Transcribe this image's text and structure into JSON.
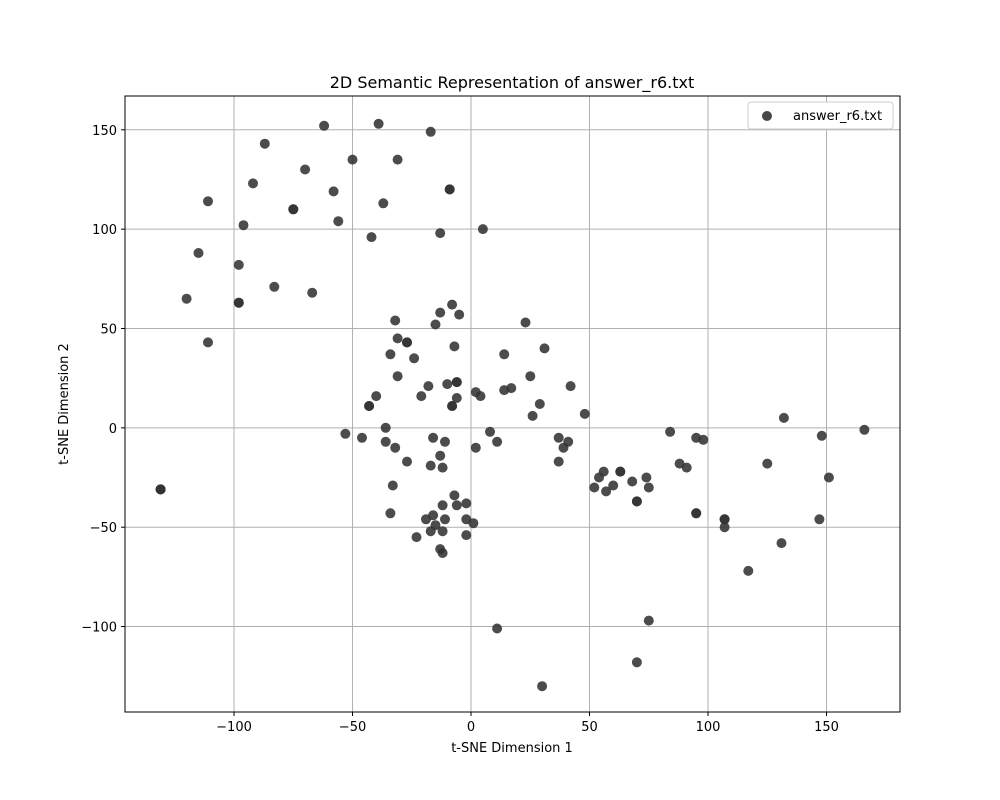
{
  "chart_data": {
    "type": "scatter",
    "title": "2D Semantic Representation of answer_r6.txt",
    "xlabel": "t-SNE Dimension 1",
    "ylabel": "t-SNE Dimension 2",
    "xlim": [
      -146,
      181
    ],
    "ylim": [
      -143,
      167
    ],
    "xticks": [
      -100,
      -50,
      0,
      50,
      100,
      150
    ],
    "yticks": [
      -100,
      -50,
      0,
      50,
      100,
      150
    ],
    "grid": true,
    "legend_position": "top-right",
    "marker_color": "#333333",
    "series": [
      {
        "name": "answer_r6.txt",
        "points": [
          [
            -62,
            152
          ],
          [
            -39,
            153
          ],
          [
            -17,
            149
          ],
          [
            -87,
            143
          ],
          [
            -50,
            135
          ],
          [
            -31,
            135
          ],
          [
            -70,
            130
          ],
          [
            -92,
            123
          ],
          [
            -58,
            119
          ],
          [
            -9,
            120
          ],
          [
            -9,
            120
          ],
          [
            -111,
            114
          ],
          [
            -37,
            113
          ],
          [
            -75,
            110
          ],
          [
            -75,
            110
          ],
          [
            -56,
            104
          ],
          [
            -96,
            102
          ],
          [
            5,
            100
          ],
          [
            -13,
            98
          ],
          [
            -42,
            96
          ],
          [
            -115,
            88
          ],
          [
            -98,
            82
          ],
          [
            -83,
            71
          ],
          [
            -67,
            68
          ],
          [
            -120,
            65
          ],
          [
            -98,
            63
          ],
          [
            -98,
            63
          ],
          [
            -8,
            62
          ],
          [
            -13,
            58
          ],
          [
            -5,
            57
          ],
          [
            -32,
            54
          ],
          [
            23,
            53
          ],
          [
            -15,
            52
          ],
          [
            -31,
            45
          ],
          [
            -27,
            43
          ],
          [
            -27,
            43
          ],
          [
            -7,
            41
          ],
          [
            31,
            40
          ],
          [
            -34,
            37
          ],
          [
            14,
            37
          ],
          [
            -24,
            35
          ],
          [
            -111,
            43
          ],
          [
            -31,
            26
          ],
          [
            25,
            26
          ],
          [
            -6,
            23
          ],
          [
            -6,
            23
          ],
          [
            -10,
            22
          ],
          [
            -18,
            21
          ],
          [
            42,
            21
          ],
          [
            17,
            20
          ],
          [
            14,
            19
          ],
          [
            2,
            18
          ],
          [
            -40,
            16
          ],
          [
            -21,
            16
          ],
          [
            4,
            16
          ],
          [
            -6,
            15
          ],
          [
            29,
            12
          ],
          [
            -43,
            11
          ],
          [
            -43,
            11
          ],
          [
            -8,
            11
          ],
          [
            -8,
            11
          ],
          [
            48,
            7
          ],
          [
            26,
            6
          ],
          [
            132,
            5
          ],
          [
            -53,
            -3
          ],
          [
            8,
            -2
          ],
          [
            84,
            -2
          ],
          [
            166,
            -1
          ],
          [
            -36,
            0
          ],
          [
            -46,
            -5
          ],
          [
            -16,
            -5
          ],
          [
            37,
            -5
          ],
          [
            95,
            -5
          ],
          [
            98,
            -6
          ],
          [
            148,
            -4
          ],
          [
            -36,
            -7
          ],
          [
            -11,
            -7
          ],
          [
            11,
            -7
          ],
          [
            41,
            -7
          ],
          [
            -32,
            -10
          ],
          [
            39,
            -10
          ],
          [
            2,
            -10
          ],
          [
            -13,
            -14
          ],
          [
            -27,
            -17
          ],
          [
            37,
            -17
          ],
          [
            88,
            -18
          ],
          [
            125,
            -18
          ],
          [
            -17,
            -19
          ],
          [
            -12,
            -20
          ],
          [
            91,
            -20
          ],
          [
            56,
            -22
          ],
          [
            63,
            -22
          ],
          [
            63,
            -22
          ],
          [
            54,
            -25
          ],
          [
            74,
            -25
          ],
          [
            151,
            -25
          ],
          [
            68,
            -27
          ],
          [
            60,
            -29
          ],
          [
            52,
            -30
          ],
          [
            75,
            -30
          ],
          [
            -33,
            -29
          ],
          [
            -131,
            -31
          ],
          [
            -131,
            -31
          ],
          [
            -131,
            -31
          ],
          [
            57,
            -32
          ],
          [
            -7,
            -34
          ],
          [
            70,
            -37
          ],
          [
            70,
            -37
          ],
          [
            -12,
            -39
          ],
          [
            -2,
            -38
          ],
          [
            -6,
            -39
          ],
          [
            -34,
            -43
          ],
          [
            95,
            -43
          ],
          [
            95,
            -43
          ],
          [
            -16,
            -44
          ],
          [
            -19,
            -46
          ],
          [
            -2,
            -46
          ],
          [
            -11,
            -46
          ],
          [
            107,
            -46
          ],
          [
            107,
            -46
          ],
          [
            147,
            -46
          ],
          [
            -15,
            -49
          ],
          [
            1,
            -48
          ],
          [
            107,
            -50
          ],
          [
            -12,
            -52
          ],
          [
            -17,
            -52
          ],
          [
            -2,
            -54
          ],
          [
            -23,
            -55
          ],
          [
            131,
            -58
          ],
          [
            -13,
            -61
          ],
          [
            -12,
            -63
          ],
          [
            117,
            -72
          ],
          [
            75,
            -97
          ],
          [
            11,
            -101
          ],
          [
            70,
            -118
          ],
          [
            30,
            -130
          ]
        ]
      }
    ]
  }
}
